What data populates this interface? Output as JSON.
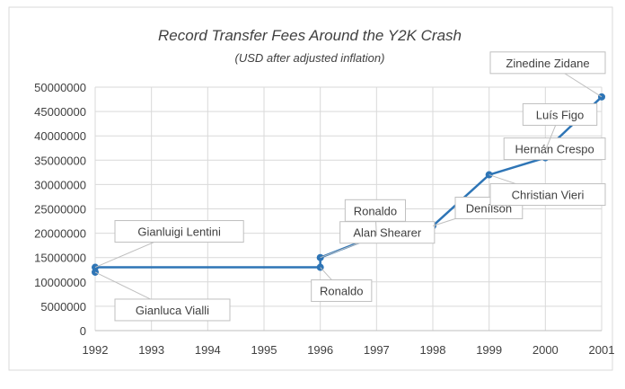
{
  "chart_data": {
    "type": "line",
    "title": "Record Transfer Fees Around the Y2K Crash",
    "subtitle": "(USD after adjusted inflation)",
    "xlabel": "",
    "ylabel": "",
    "xlim": [
      1992,
      2001
    ],
    "ylim": [
      0,
      50000000
    ],
    "x_ticks": [
      "1992",
      "1993",
      "1994",
      "1995",
      "1996",
      "1997",
      "1998",
      "1999",
      "2000",
      "2001"
    ],
    "y_ticks": [
      "0",
      "5000000",
      "10000000",
      "15000000",
      "20000000",
      "25000000",
      "30000000",
      "35000000",
      "40000000",
      "45000000",
      "50000000"
    ],
    "grid": true,
    "line_color": "#2e75b6",
    "points": [
      {
        "x": 1992,
        "y": 13000000,
        "label": "Gianluigi Lentini"
      },
      {
        "x": 1992,
        "y": 12000000,
        "label": "Gianluca Vialli"
      },
      {
        "x": 1996,
        "y": 13000000,
        "label": "Ronaldo"
      },
      {
        "x": 1996,
        "y": 15000000,
        "label": "Alan Shearer"
      },
      {
        "x": 1997,
        "y": 19500000,
        "label": "Ronaldo"
      },
      {
        "x": 1998,
        "y": 21500000,
        "label": "Denílson"
      },
      {
        "x": 1999,
        "y": 32000000,
        "label": "Christian Vieri"
      },
      {
        "x": 2000,
        "y": 35500000,
        "label": "Hernán Crespo"
      },
      {
        "x": 2000,
        "y": 37000000,
        "label": "Luís Figo"
      },
      {
        "x": 2001,
        "y": 48000000,
        "label": "Zinedine Zidane"
      }
    ]
  }
}
